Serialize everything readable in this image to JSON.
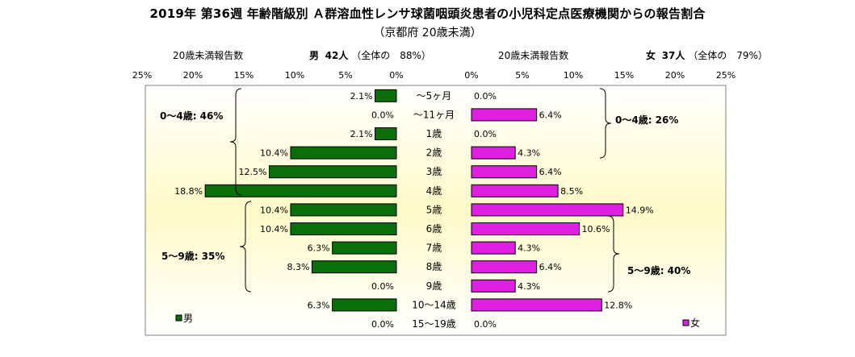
{
  "title": "2019年 第36週 年齢階級別 Ａ群溶血性レンサ球菌咽頭炎患者の小児科定点医療機関からの報告割合",
  "subtitle": "（京都府 20歳未満）",
  "left_header": {
    "label": "20歳未満報告数",
    "sex": "男",
    "count": "42人",
    "share": "（全体の　88%）"
  },
  "right_header": {
    "label": "20歳未満報告数",
    "sex": "女",
    "count": "37人",
    "share": "（全体の　79%）"
  },
  "chart_data": {
    "type": "bar",
    "orientation": "horizontal-pyramid",
    "categories": [
      "～5ヶ月",
      "～11ヶ月",
      "1歳",
      "2歳",
      "3歳",
      "4歳",
      "5歳",
      "6歳",
      "7歳",
      "8歳",
      "9歳",
      "10～14歳",
      "15～19歳"
    ],
    "x_ticks": [
      "25%",
      "20%",
      "15%",
      "10%",
      "5%",
      "0%"
    ],
    "x_ticks_right": [
      "0%",
      "5%",
      "10%",
      "15%",
      "20%",
      "25%"
    ],
    "xlim": [
      0,
      25
    ],
    "series": [
      {
        "name": "男",
        "color": "#0a6e0a",
        "values": [
          2.1,
          0.0,
          2.1,
          10.4,
          12.5,
          18.8,
          10.4,
          10.4,
          6.3,
          8.3,
          0.0,
          6.3,
          0.0
        ],
        "labels": [
          "2.1%",
          "0.0%",
          "2.1%",
          "10.4%",
          "12.5%",
          "18.8%",
          "10.4%",
          "10.4%",
          "6.3%",
          "8.3%",
          "0.0%",
          "6.3%",
          "0.0%"
        ]
      },
      {
        "name": "女",
        "color": "#e020e0",
        "values": [
          0.0,
          6.4,
          0.0,
          4.3,
          6.4,
          8.5,
          14.9,
          10.6,
          4.3,
          6.4,
          4.3,
          12.8,
          0.0
        ],
        "labels": [
          "0.0%",
          "6.4%",
          "0.0%",
          "4.3%",
          "6.4%",
          "8.5%",
          "14.9%",
          "10.6%",
          "4.3%",
          "6.4%",
          "4.3%",
          "12.8%",
          "0.0%"
        ]
      }
    ],
    "annotations": {
      "left_0_4": "0～4歳: 46%",
      "left_5_9": "5～9歳: 35%",
      "right_0_4": "0～4歳: 26%",
      "right_5_9": "5～9歳: 40%"
    },
    "background_gradient": [
      "#ffffff",
      "#fffac8"
    ]
  }
}
